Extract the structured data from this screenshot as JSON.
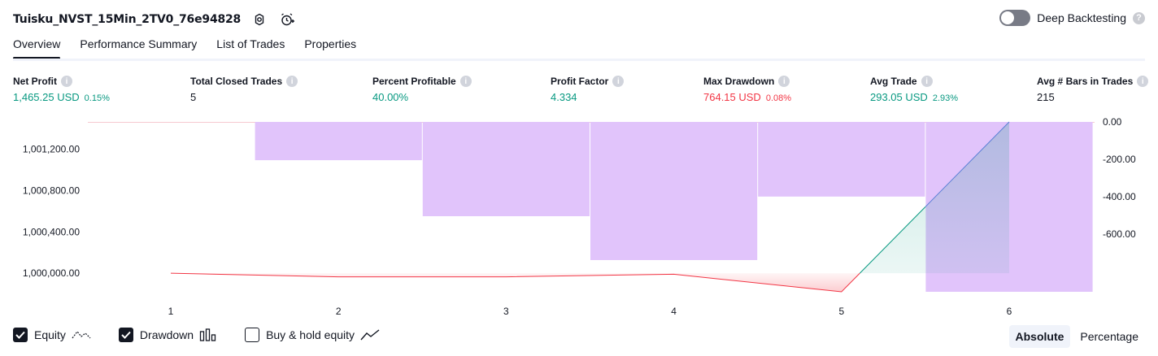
{
  "header": {
    "strategy_name": "Tuisku_NVST_15Min_2TV0_76e94828",
    "deep_backtesting_label": "Deep Backtesting",
    "deep_backtesting_on": false
  },
  "tabs": [
    {
      "label": "Overview",
      "active": true
    },
    {
      "label": "Performance Summary",
      "active": false
    },
    {
      "label": "List of Trades",
      "active": false
    },
    {
      "label": "Properties",
      "active": false
    }
  ],
  "metrics": {
    "net_profit": {
      "label": "Net Profit",
      "value": "1,465.25 USD",
      "sub": "0.15%"
    },
    "total_closed_trades": {
      "label": "Total Closed Trades",
      "value": "5"
    },
    "percent_profitable": {
      "label": "Percent Profitable",
      "value": "40.00%"
    },
    "profit_factor": {
      "label": "Profit Factor",
      "value": "4.334"
    },
    "max_drawdown": {
      "label": "Max Drawdown",
      "value": "764.15 USD",
      "sub": "0.08%"
    },
    "avg_trade": {
      "label": "Avg Trade",
      "value": "293.05 USD",
      "sub": "2.93%"
    },
    "avg_bars": {
      "label": "Avg # Bars in Trades",
      "value": "215"
    }
  },
  "chart_data": {
    "type": "line",
    "x": [
      1,
      2,
      3,
      4,
      5,
      6
    ],
    "x_tick_labels": [
      "1",
      "2",
      "3",
      "4",
      "5",
      "6"
    ],
    "series": [
      {
        "values": [
          1000000,
          999965,
          999965,
          999990,
          999820,
          1001465
        ]
      }
    ],
    "drawdown_bars": [
      {
        "x_start": 1.5,
        "x_end": 2.5,
        "value": -205
      },
      {
        "x_start": 2.5,
        "x_end": 3.5,
        "value": -505
      },
      {
        "x_start": 3.5,
        "x_end": 4.5,
        "value": -740
      },
      {
        "x_start": 4.5,
        "x_end": 5.5,
        "value": -400
      },
      {
        "x_start": 5.5,
        "x_end": 6.5,
        "value": -910
      }
    ],
    "left_axis": {
      "ticks": [
        1000000,
        1000400,
        1000800,
        1001200
      ],
      "tick_labels": [
        "1,000,000.00",
        "1,000,400.00",
        "1,000,800.00",
        "1,001,200.00"
      ],
      "range": [
        999820,
        1001465
      ]
    },
    "right_axis": {
      "ticks": [
        0,
        -200,
        -400,
        -600
      ],
      "tick_labels": [
        "0.00",
        "-200.00",
        "-400.00",
        "-600.00"
      ],
      "range": [
        -910,
        0
      ]
    },
    "colors": {
      "loss_line": "#f23645",
      "profit_line": "#089981",
      "drawdown": "#e1c4fb",
      "blue_line": "#5b7fd6"
    }
  },
  "legend": [
    {
      "label": "Equity",
      "checked": true,
      "icon": "equity-icon"
    },
    {
      "label": "Drawdown",
      "checked": true,
      "icon": "drawdown-bars-icon"
    },
    {
      "label": "Buy & hold equity",
      "checked": false,
      "icon": "buy-hold-icon"
    }
  ],
  "view_mode": {
    "absolute_label": "Absolute",
    "percentage_label": "Percentage",
    "active": "absolute"
  }
}
